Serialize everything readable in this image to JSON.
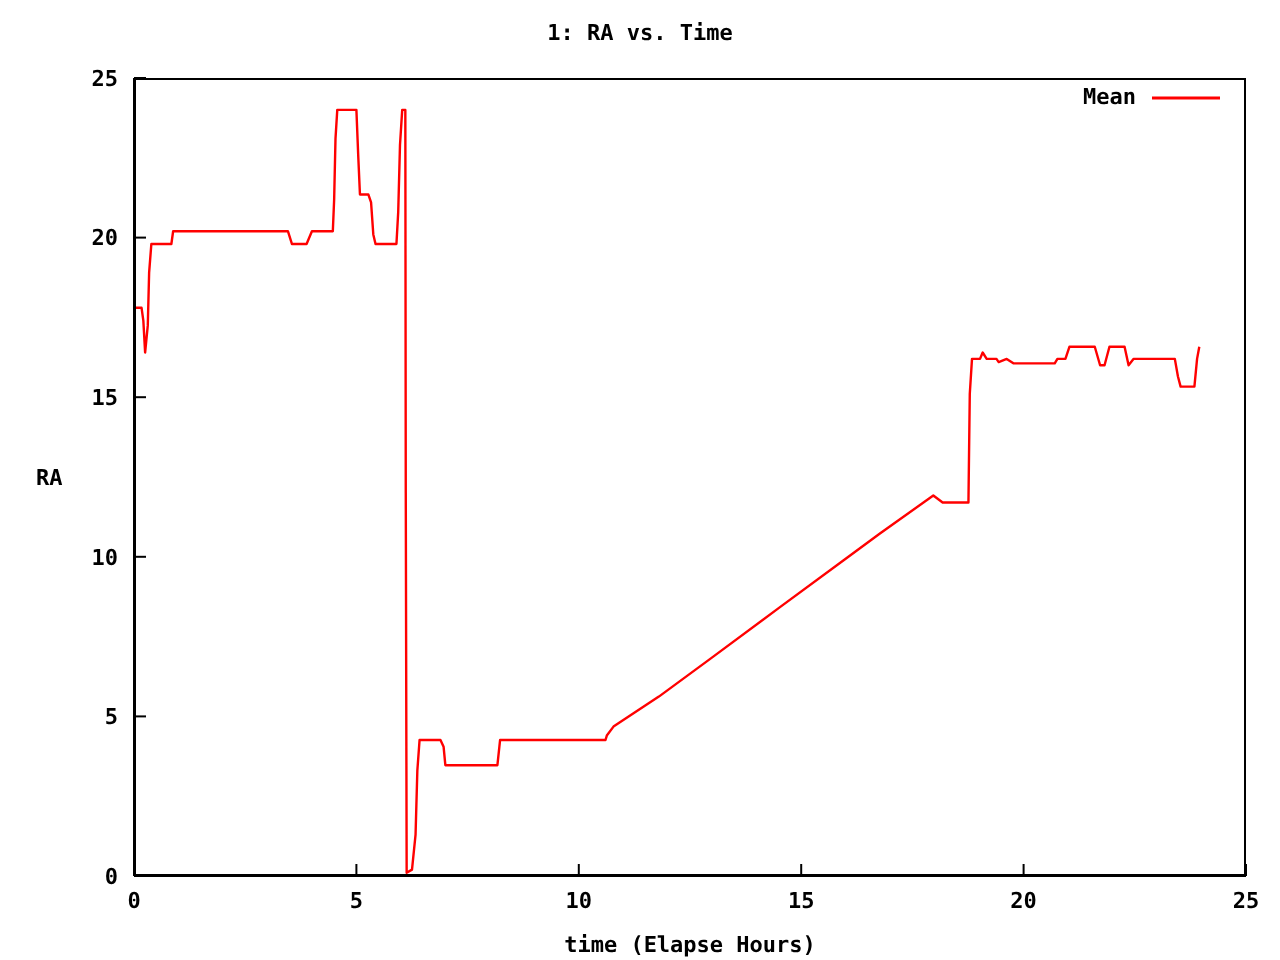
{
  "chart_data": {
    "type": "line",
    "title": "1: RA vs. Time",
    "xlabel": "time (Elapse Hours)",
    "ylabel": "RA",
    "xlim": [
      0,
      25
    ],
    "xticks": [
      0,
      5,
      10,
      15,
      20,
      25
    ],
    "ylim": [
      0,
      25
    ],
    "yticks": [
      0,
      5,
      10,
      15,
      20,
      25
    ],
    "grid": false,
    "legend": "top right",
    "marker": "none",
    "line_style": "solid",
    "series": [
      {
        "name": "Mean",
        "color": "#ff0000",
        "x": [
          0,
          0.17,
          0.21,
          0.25,
          0.31,
          0.34,
          0.39,
          0.84,
          0.88,
          3.46,
          3.55,
          3.88,
          4.0,
          4.47,
          4.5,
          4.53,
          4.57,
          5.0,
          5.04,
          5.08,
          5.27,
          5.33,
          5.38,
          5.43,
          5.9,
          5.94,
          5.98,
          6.03,
          6.1,
          6.11,
          6.13,
          6.25,
          6.33,
          6.37,
          6.42,
          6.89,
          6.96,
          7.0,
          8.17,
          8.23,
          10.6,
          10.63,
          10.78,
          11.8,
          13.0,
          14.5,
          16.0,
          16.77,
          17.97,
          18.18,
          18.76,
          18.79,
          18.84,
          19.02,
          19.08,
          19.17,
          19.39,
          19.44,
          19.62,
          19.77,
          20.7,
          20.76,
          20.94,
          21.03,
          21.6,
          21.72,
          21.82,
          21.93,
          22.27,
          22.36,
          22.47,
          23.4,
          23.47,
          23.53,
          23.84,
          23.9,
          23.95
        ],
        "values": [
          17.8,
          17.8,
          17.4,
          16.4,
          17.25,
          18.9,
          19.8,
          19.8,
          20.2,
          20.2,
          19.8,
          19.8,
          20.2,
          20.2,
          21.2,
          23.1,
          24.0,
          24.0,
          22.6,
          21.35,
          21.35,
          21.1,
          20.1,
          19.8,
          19.8,
          20.8,
          22.9,
          24.0,
          24.0,
          12.0,
          0.1,
          0.2,
          1.3,
          3.3,
          4.26,
          4.26,
          4.05,
          3.47,
          3.47,
          4.26,
          4.26,
          4.4,
          4.68,
          5.62,
          6.85,
          8.4,
          9.94,
          10.73,
          11.92,
          11.7,
          11.7,
          15.1,
          16.2,
          16.2,
          16.4,
          16.2,
          16.2,
          16.1,
          16.2,
          16.06,
          16.06,
          16.2,
          16.2,
          16.58,
          16.58,
          16.0,
          16.0,
          16.58,
          16.58,
          16.0,
          16.2,
          16.2,
          15.65,
          15.33,
          15.33,
          16.2,
          16.58
        ]
      }
    ]
  }
}
